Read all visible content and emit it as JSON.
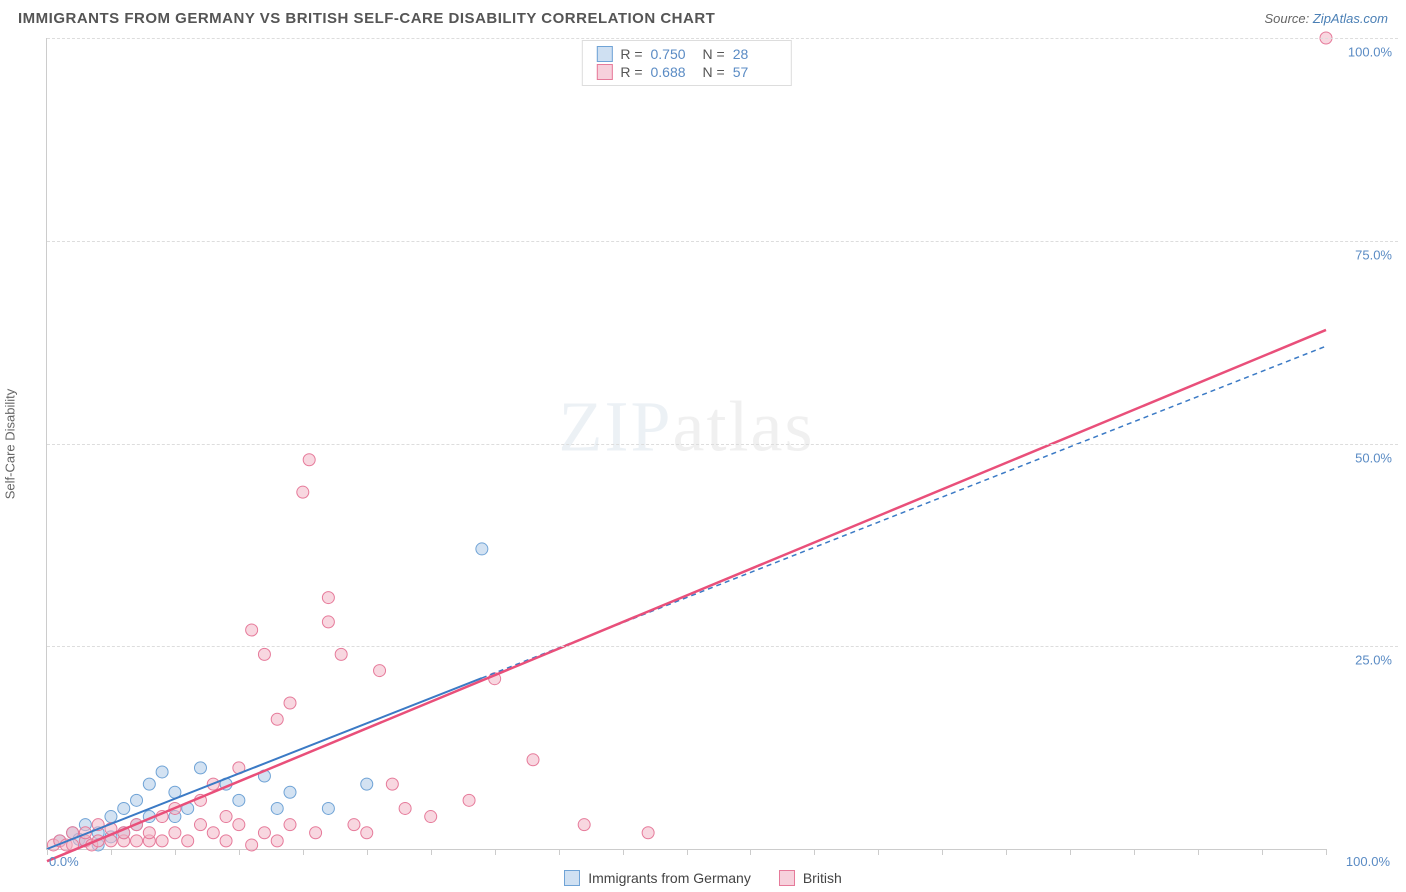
{
  "title": "IMMIGRANTS FROM GERMANY VS BRITISH SELF-CARE DISABILITY CORRELATION CHART",
  "source_prefix": "Source: ",
  "source_name": "ZipAtlas.com",
  "watermark_a": "ZIP",
  "watermark_b": "atlas",
  "ylabel": "Self-Care Disability",
  "chart": {
    "type": "scatter",
    "background_color": "#ffffff",
    "grid_color": "#dddddd",
    "axis_color": "#cccccc",
    "tick_label_color": "#5a8bc4",
    "xlim": [
      0,
      100
    ],
    "ylim": [
      0,
      100
    ],
    "yticks": [
      0,
      25,
      50,
      75,
      100
    ],
    "ytick_labels": [
      "0.0%",
      "25.0%",
      "50.0%",
      "75.0%",
      "100.0%"
    ],
    "xtick_left": "0.0%",
    "xtick_right": "100.0%",
    "xtick_positions": [
      0,
      5,
      10,
      15,
      20,
      25,
      30,
      35,
      40,
      45,
      50,
      55,
      60,
      65,
      70,
      75,
      80,
      85,
      90,
      95,
      100
    ],
    "marker_radius": 6,
    "marker_opacity": 0.55,
    "series": [
      {
        "name": "Immigrants from Germany",
        "color_fill": "#aecbe8",
        "color_stroke": "#6fa3d6",
        "swatch_fill": "#cfe0f2",
        "swatch_border": "#6fa3d6",
        "R": "0.750",
        "N": "28",
        "trend": {
          "x1": 0,
          "y1": 0,
          "x2": 100,
          "y2": 62,
          "solid_until_x": 34,
          "stroke": "#3b7ac5",
          "width": 2,
          "dash": "5 4"
        },
        "points": [
          [
            1,
            1
          ],
          [
            2,
            2
          ],
          [
            2.5,
            1.2
          ],
          [
            3,
            3
          ],
          [
            3,
            1
          ],
          [
            4,
            2
          ],
          [
            4,
            0.5
          ],
          [
            5,
            4
          ],
          [
            5,
            1.5
          ],
          [
            6,
            5
          ],
          [
            6,
            2
          ],
          [
            7,
            6
          ],
          [
            7,
            3
          ],
          [
            8,
            8
          ],
          [
            8,
            4
          ],
          [
            9,
            9.5
          ],
          [
            10,
            7
          ],
          [
            10,
            4
          ],
          [
            11,
            5
          ],
          [
            12,
            10
          ],
          [
            14,
            8
          ],
          [
            15,
            6
          ],
          [
            17,
            9
          ],
          [
            18,
            5
          ],
          [
            19,
            7
          ],
          [
            22,
            5
          ],
          [
            25,
            8
          ],
          [
            34,
            37
          ]
        ]
      },
      {
        "name": "British",
        "color_fill": "#f2b7c6",
        "color_stroke": "#e67a9a",
        "swatch_fill": "#f7d1dc",
        "swatch_border": "#e67a9a",
        "R": "0.688",
        "N": "57",
        "trend": {
          "x1": 0,
          "y1": -1.5,
          "x2": 100,
          "y2": 64,
          "stroke": "#e94f7a",
          "width": 2.5
        },
        "points": [
          [
            0.5,
            0.5
          ],
          [
            1,
            1
          ],
          [
            1.5,
            0.5
          ],
          [
            2,
            0.5
          ],
          [
            2,
            2
          ],
          [
            3,
            1
          ],
          [
            3,
            2
          ],
          [
            3.5,
            0.5
          ],
          [
            4,
            1
          ],
          [
            4,
            3
          ],
          [
            5,
            1
          ],
          [
            5,
            2.5
          ],
          [
            6,
            1
          ],
          [
            6,
            2
          ],
          [
            7,
            1
          ],
          [
            7,
            3
          ],
          [
            8,
            1
          ],
          [
            8,
            2
          ],
          [
            9,
            4
          ],
          [
            9,
            1
          ],
          [
            10,
            5
          ],
          [
            10,
            2
          ],
          [
            11,
            1
          ],
          [
            12,
            3
          ],
          [
            12,
            6
          ],
          [
            13,
            2
          ],
          [
            13,
            8
          ],
          [
            14,
            4
          ],
          [
            14,
            1
          ],
          [
            15,
            3
          ],
          [
            15,
            10
          ],
          [
            16,
            0.5
          ],
          [
            16,
            27
          ],
          [
            17,
            2
          ],
          [
            17,
            24
          ],
          [
            18,
            1
          ],
          [
            18,
            16
          ],
          [
            19,
            3
          ],
          [
            19,
            18
          ],
          [
            20,
            44
          ],
          [
            20.5,
            48
          ],
          [
            21,
            2
          ],
          [
            22,
            31
          ],
          [
            22,
            28
          ],
          [
            23,
            24
          ],
          [
            24,
            3
          ],
          [
            25,
            2
          ],
          [
            26,
            22
          ],
          [
            27,
            8
          ],
          [
            28,
            5
          ],
          [
            30,
            4
          ],
          [
            33,
            6
          ],
          [
            35,
            21
          ],
          [
            38,
            11
          ],
          [
            42,
            3
          ],
          [
            47,
            2
          ],
          [
            100,
            100
          ]
        ]
      }
    ]
  },
  "legend_top": {
    "R_label": "R =",
    "N_label": "N ="
  },
  "legend_bottom": {
    "items": [
      "Immigrants from Germany",
      "British"
    ]
  }
}
